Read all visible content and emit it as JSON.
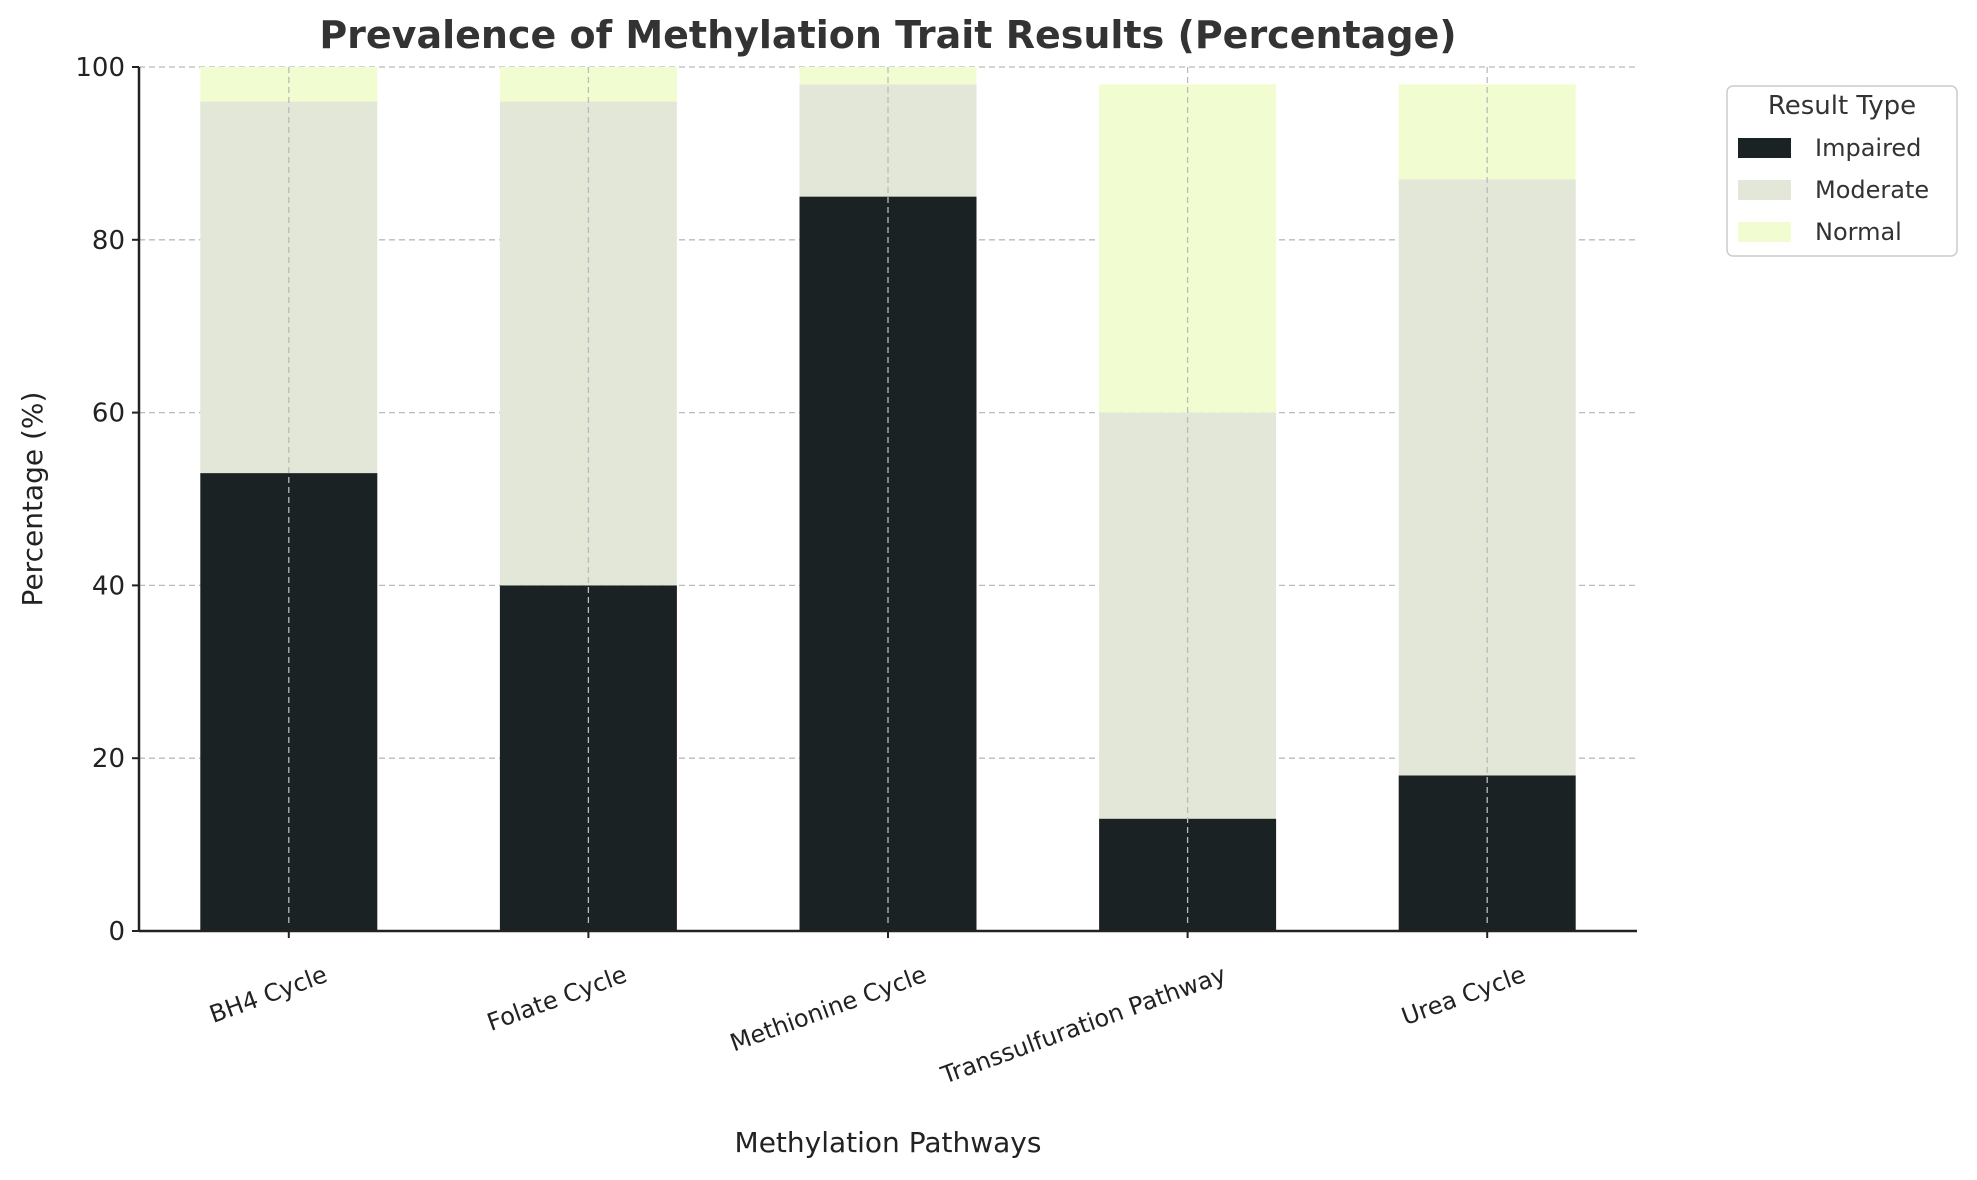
{
  "chart_data": {
    "type": "bar",
    "stacked": true,
    "title": "Prevalence of Methylation Trait Results (Percentage)",
    "xlabel": "Methylation Pathways",
    "ylabel": "Percentage (%)",
    "ylim": [
      0,
      100
    ],
    "yticks": [
      "0",
      "20",
      "40",
      "60",
      "80",
      "100"
    ],
    "grid": true,
    "categories": [
      "BH4 Cycle",
      "Folate Cycle",
      "Methionine Cycle",
      "Transsulfuration Pathway",
      "Urea Cycle"
    ],
    "series": [
      {
        "name": "Impaired",
        "color": "#1b2224",
        "values": [
          53,
          40,
          85,
          13,
          18
        ]
      },
      {
        "name": "Moderate",
        "color": "#e3e7d7",
        "values": [
          43,
          56,
          13,
          47,
          69
        ]
      },
      {
        "name": "Normal",
        "color": "#f1fdd0",
        "values": [
          4,
          4,
          2,
          38,
          11
        ]
      }
    ],
    "legend": {
      "title": "Result Type",
      "placement": "outside-top-right"
    }
  }
}
